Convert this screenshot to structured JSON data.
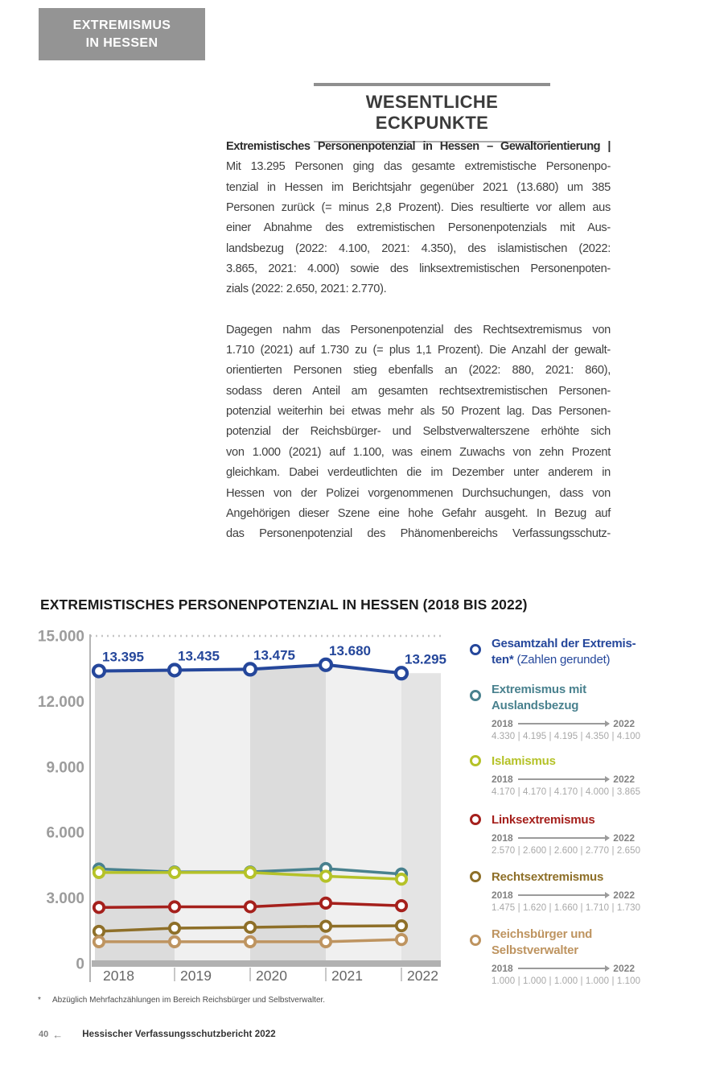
{
  "page": {
    "header_box": {
      "line1": "EXTREMISMUS",
      "line2": "IN HESSEN",
      "bg": "#949494"
    },
    "section_title": "WESENTLICHE ECKPUNKTE",
    "body": {
      "p1_heading": "Extremistisches Personenpotenzial in Hessen – Gewaltorientierung |",
      "p1_lines": [
        "Mit 13.295 Personen ging das gesamte extremistische Personenpo-",
        "tenzial in Hessen im Berichtsjahr gegenüber 2021 (13.680) um 385",
        "Personen zurück (= minus 2,8 Prozent). Dies resultierte vor allem aus",
        "einer Abnahme des extremistischen Personenpotenzials mit Aus-",
        "landsbezug (2022: 4.100, 2021: 4.350), des islamistischen (2022:",
        "3.865, 2021: 4.000) sowie des linksextremistischen Personenpoten-"
      ],
      "p1_last": "zials (2022: 2.650, 2021: 2.770).",
      "p2_lines": [
        "Dagegen nahm das Personenpotenzial des Rechtsextremismus von",
        "1.710 (2021) auf 1.730 zu (= plus 1,1 Prozent). Die Anzahl der gewalt-",
        "orientierten Personen stieg ebenfalls an (2022: 880, 2021: 860),",
        "sodass deren Anteil am gesamten rechtsextremistischen Personen-",
        "potenzial weiterhin bei etwas mehr als 50 Prozent lag. Das Personen-",
        "potenzial der Reichsbürger- und Selbstverwalterszene erhöhte sich",
        "von 1.000 (2021) auf 1.100, was einem Zuwachs von zehn Prozent",
        "gleichkam. Dabei verdeutlichten die im Dezember unter anderem in",
        "Hessen von der Polizei vorgenommenen Durchsuchungen, dass von",
        "Angehörigen dieser Szene eine hohe Gefahr ausgeht. In Bezug auf",
        "das Personenpotenzial des Phänomenbereichs Verfassungsschutz-"
      ]
    },
    "footnote": {
      "marker": "*",
      "text": "Abzüglich Mehrfachzählungen im Bereich Reichsbürger und Selbstverwalter."
    },
    "footer": {
      "page_number": "40",
      "arrow": "←",
      "text": "Hessischer Verfassungsschutzbericht 2022"
    }
  },
  "chart_data": {
    "type": "line",
    "title": "EXTREMISTISCHES PERSONENPOTENZIAL IN HESSEN (2018 BIS 2022)",
    "categories": [
      "2018",
      "2019",
      "2020",
      "2021",
      "2022"
    ],
    "ylim": [
      0,
      15000
    ],
    "y_ticks": [
      0,
      3000,
      6000,
      9000,
      12000,
      15000
    ],
    "y_tick_labels": [
      "0",
      "3.000",
      "6.000",
      "9.000",
      "12.000",
      "15.000"
    ],
    "grid": "dotted boundary line at 15.000 only; alternating grey year bands shaded beneath the total line",
    "legend_position": "right",
    "series": [
      {
        "name": "Gesamtzahl der Extremisten* (Zahlen gerundet)",
        "color": "#25479B",
        "values": [
          13395,
          13435,
          13475,
          13680,
          13295
        ],
        "point_labels": [
          "13.395",
          "13.435",
          "13.475",
          "13.680",
          "13.295"
        ]
      },
      {
        "name": "Extremismus mit Auslandsbezug",
        "color": "#49818E",
        "values": [
          4330,
          4195,
          4195,
          4350,
          4100
        ]
      },
      {
        "name": "Islamismus",
        "color": "#B5C228",
        "values": [
          4170,
          4170,
          4170,
          4000,
          3865
        ]
      },
      {
        "name": "Linksextremismus",
        "color": "#A5201C",
        "values": [
          2570,
          2600,
          2600,
          2770,
          2650
        ]
      },
      {
        "name": "Rechtsextremismus",
        "color": "#8E6F28",
        "values": [
          1475,
          1620,
          1660,
          1710,
          1730
        ]
      },
      {
        "name": "Reichsbürger und Selbstverwalter",
        "color": "#BE9460",
        "values": [
          1000,
          1000,
          1000,
          1000,
          1100
        ]
      }
    ],
    "band_colors": [
      "#DCDCDC",
      "#F0F0F0",
      "#DCDCDC",
      "#F0F0F0",
      "#E4E4E4"
    ],
    "axis_color": "#B5B5B5",
    "baseline_color": "#B1B1B1",
    "dotted_line_color": "#C6C6C6",
    "x_label_color": "#666666",
    "y_label_color": "#9C9C9C"
  },
  "legend": {
    "entries": [
      {
        "color": "#25479B",
        "title_lines": [
          "Gesamtzahl der Extremis-",
          "ten*"
        ],
        "title_suffix": " (Zahlen gerundet)"
      },
      {
        "color": "#49818E",
        "title_lines": [
          "Extremismus mit",
          "Auslandsbezug"
        ],
        "range_start": "2018",
        "range_end": "2022",
        "values_label": "4.330 | 4.195 | 4.195 | 4.350 | 4.100"
      },
      {
        "color": "#B5C228",
        "title_lines": [
          "Islamismus"
        ],
        "range_start": "2018",
        "range_end": "2022",
        "values_label": "4.170 | 4.170 | 4.170 | 4.000 | 3.865"
      },
      {
        "color": "#A5201C",
        "title_lines": [
          "Linksextremismus"
        ],
        "range_start": "2018",
        "range_end": "2022",
        "values_label": "2.570 | 2.600 | 2.600 | 2.770 | 2.650"
      },
      {
        "color": "#8E6F28",
        "title_lines": [
          "Rechtsextremismus"
        ],
        "range_start": "2018",
        "range_end": "2022",
        "values_label": "1.475 | 1.620 | 1.660 | 1.710 | 1.730"
      },
      {
        "color": "#BE9460",
        "title_lines": [
          "Reichsbürger und",
          "Selbstverwalter"
        ],
        "range_start": "2018",
        "range_end": "2022",
        "values_label": "1.000 | 1.000 | 1.000 | 1.000 | 1.100"
      }
    ]
  }
}
